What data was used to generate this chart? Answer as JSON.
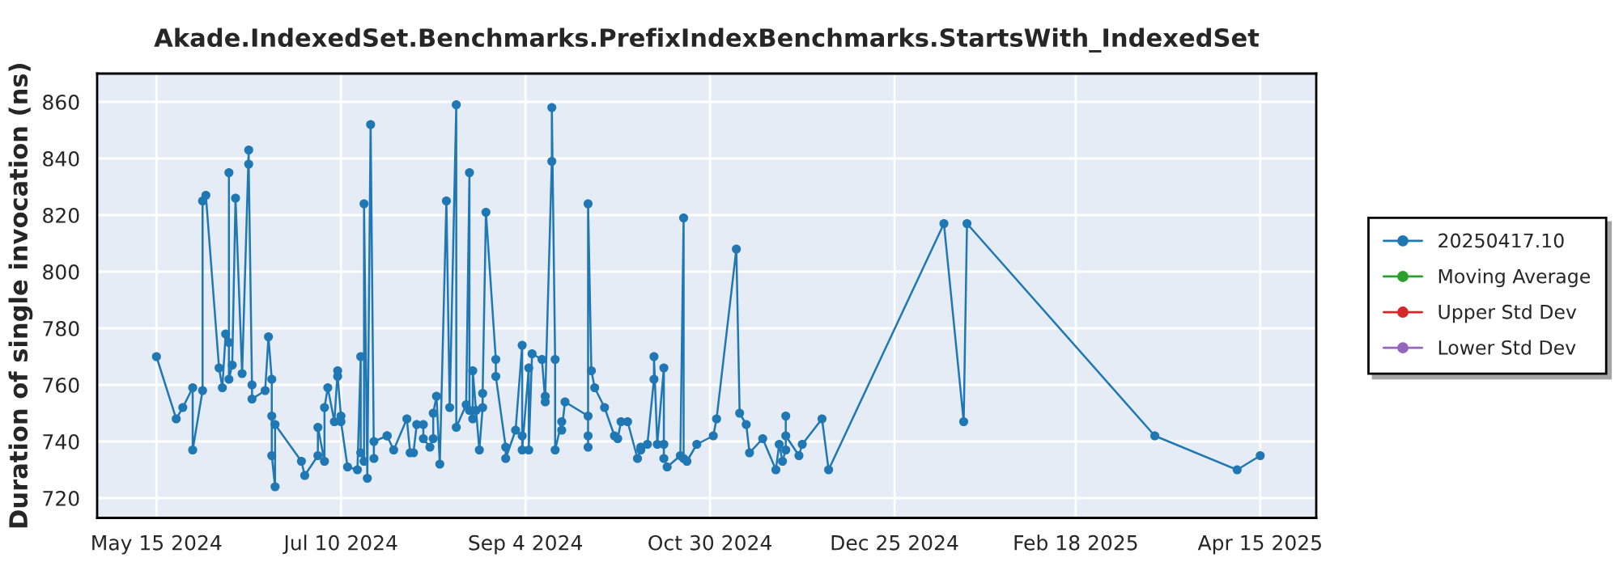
{
  "chart_data": {
    "type": "line",
    "title": "Akade.IndexedSet.Benchmarks.PrefixIndexBenchmarks.StartsWith_IndexedSet",
    "ylabel": "Duration of single invocation (ns)",
    "xlim": [
      "2024-04-27",
      "2025-05-02"
    ],
    "xticks": [
      {
        "value": "2024-05-15",
        "label": "May 15 2024"
      },
      {
        "value": "2024-07-10",
        "label": "Jul 10 2024"
      },
      {
        "value": "2024-09-04",
        "label": "Sep 4 2024"
      },
      {
        "value": "2024-10-30",
        "label": "Oct 30 2024"
      },
      {
        "value": "2024-12-25",
        "label": "Dec 25 2024"
      },
      {
        "value": "2025-02-18",
        "label": "Feb 18 2025"
      },
      {
        "value": "2025-04-15",
        "label": "Apr 15 2025"
      }
    ],
    "ylim": [
      713,
      870
    ],
    "yticks": [
      720,
      740,
      760,
      780,
      800,
      820,
      840,
      860
    ],
    "grid": true,
    "legend": "right",
    "marker": "circle",
    "line_style": "solid",
    "series": [
      {
        "name": "20250417.10",
        "color": "#1f77b4",
        "x": [
          "2024-05-15",
          "2024-05-21",
          "2024-05-23",
          "2024-05-26",
          "2024-05-26",
          "2024-05-29",
          "2024-05-29",
          "2024-05-30",
          "2024-06-03",
          "2024-06-04",
          "2024-06-05",
          "2024-06-06",
          "2024-06-06",
          "2024-06-06",
          "2024-06-07",
          "2024-06-08",
          "2024-06-10",
          "2024-06-12",
          "2024-06-12",
          "2024-06-13",
          "2024-06-13",
          "2024-06-17",
          "2024-06-18",
          "2024-06-19",
          "2024-06-19",
          "2024-06-19",
          "2024-06-20",
          "2024-06-20",
          "2024-06-28",
          "2024-06-29",
          "2024-07-03",
          "2024-07-03",
          "2024-07-05",
          "2024-07-05",
          "2024-07-06",
          "2024-07-08",
          "2024-07-09",
          "2024-07-09",
          "2024-07-10",
          "2024-07-10",
          "2024-07-12",
          "2024-07-15",
          "2024-07-16",
          "2024-07-16",
          "2024-07-17",
          "2024-07-17",
          "2024-07-18",
          "2024-07-19",
          "2024-07-20",
          "2024-07-20",
          "2024-07-24",
          "2024-07-24",
          "2024-07-26",
          "2024-07-30",
          "2024-07-31",
          "2024-08-01",
          "2024-08-02",
          "2024-08-04",
          "2024-08-04",
          "2024-08-06",
          "2024-08-07",
          "2024-08-07",
          "2024-08-08",
          "2024-08-09",
          "2024-08-11",
          "2024-08-12",
          "2024-08-14",
          "2024-08-14",
          "2024-08-17",
          "2024-08-18",
          "2024-08-18",
          "2024-08-19",
          "2024-08-19",
          "2024-08-20",
          "2024-08-21",
          "2024-08-22",
          "2024-08-22",
          "2024-08-23",
          "2024-08-26",
          "2024-08-26",
          "2024-08-29",
          "2024-08-29",
          "2024-09-01",
          "2024-09-03",
          "2024-09-03",
          "2024-09-03",
          "2024-09-05",
          "2024-09-05",
          "2024-09-06",
          "2024-09-09",
          "2024-09-10",
          "2024-09-10",
          "2024-09-12",
          "2024-09-12",
          "2024-09-13",
          "2024-09-13",
          "2024-09-15",
          "2024-09-15",
          "2024-09-16",
          "2024-09-23",
          "2024-09-23",
          "2024-09-23",
          "2024-09-23",
          "2024-09-24",
          "2024-09-25",
          "2024-09-28",
          "2024-10-01",
          "2024-10-02",
          "2024-10-03",
          "2024-10-05",
          "2024-10-08",
          "2024-10-09",
          "2024-10-09",
          "2024-10-11",
          "2024-10-13",
          "2024-10-13",
          "2024-10-14",
          "2024-10-16",
          "2024-10-16",
          "2024-10-16",
          "2024-10-17",
          "2024-10-21",
          "2024-10-22",
          "2024-10-22",
          "2024-10-23",
          "2024-10-26",
          "2024-10-31",
          "2024-11-01",
          "2024-11-07",
          "2024-11-08",
          "2024-11-10",
          "2024-11-11",
          "2024-11-15",
          "2024-11-19",
          "2024-11-20",
          "2024-11-21",
          "2024-11-22",
          "2024-11-22",
          "2024-11-22",
          "2024-11-26",
          "2024-11-27",
          "2024-12-03",
          "2024-12-05",
          "2025-01-09",
          "2025-01-15",
          "2025-01-16",
          "2025-03-14",
          "2025-04-08",
          "2025-04-15"
        ],
        "values": [
          770,
          748,
          752,
          759,
          737,
          758,
          825,
          827,
          766,
          759,
          778,
          775,
          835,
          762,
          767,
          826,
          764,
          843,
          838,
          760,
          755,
          758,
          777,
          762,
          749,
          735,
          724,
          746,
          733,
          728,
          735,
          745,
          733,
          752,
          759,
          747,
          765,
          763,
          749,
          747,
          731,
          730,
          770,
          736,
          733,
          824,
          727,
          852,
          734,
          740,
          742,
          742,
          737,
          748,
          736,
          736,
          746,
          746,
          741,
          738,
          741,
          750,
          756,
          732,
          825,
          752,
          859,
          745,
          753,
          835,
          751,
          748,
          765,
          751,
          737,
          752,
          757,
          821,
          769,
          763,
          738,
          734,
          744,
          774,
          742,
          737,
          766,
          737,
          771,
          769,
          754,
          756,
          839,
          858,
          769,
          737,
          747,
          744,
          754,
          749,
          742,
          738,
          824,
          765,
          759,
          752,
          742,
          741,
          747,
          747,
          734,
          737,
          738,
          739,
          762,
          770,
          739,
          766,
          739,
          734,
          731,
          735,
          819,
          734,
          733,
          739,
          742,
          748,
          808,
          750,
          746,
          736,
          741,
          730,
          739,
          733,
          737,
          749,
          742,
          735,
          739,
          748,
          730,
          817,
          747,
          817,
          742,
          730,
          735
        ]
      },
      {
        "name": "Moving Average",
        "color": "#2ca02c"
      },
      {
        "name": "Upper Std Dev",
        "color": "#d62728"
      },
      {
        "name": "Lower Std Dev",
        "color": "#9467bd"
      }
    ]
  }
}
